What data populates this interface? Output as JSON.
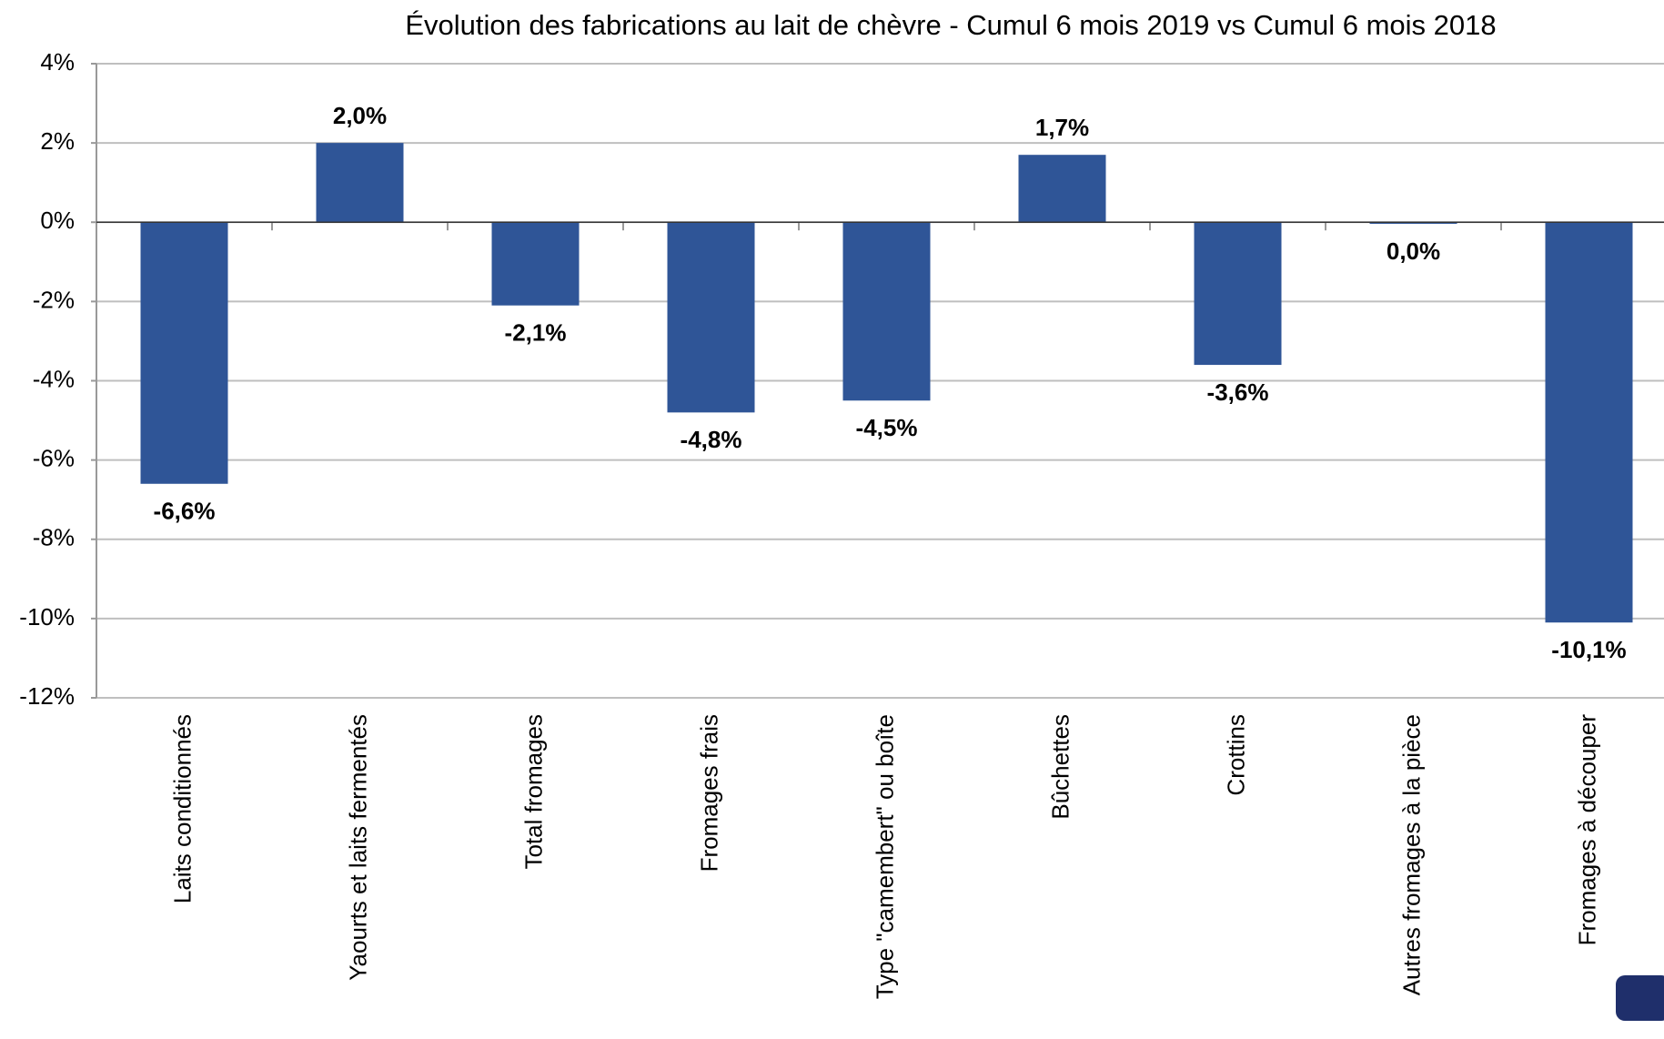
{
  "chart_data": {
    "type": "bar",
    "title": "Évolution des fabrications au lait de chèvre - Cumul 6 mois 2019 vs Cumul 6 mois 2018",
    "categories": [
      "Laits conditionnés",
      "Yaourts et laits fermentés",
      "Total fromages",
      "Fromages frais",
      "Type \"camembert\" ou boîte",
      "Bûchettes",
      "Crottins",
      "Autres fromages à la pièce",
      "Fromages à découper"
    ],
    "values": [
      -6.6,
      2.0,
      -2.1,
      -4.8,
      -4.5,
      1.7,
      -3.6,
      -0.04,
      -10.1
    ],
    "value_labels": [
      "-6,6%",
      "2,0%",
      "-2,1%",
      "-4,8%",
      "-4,5%",
      "1,7%",
      "-3,6%",
      "0,0%",
      "-10,1%"
    ],
    "color": "#2f5597",
    "ylim": [
      -12,
      4
    ],
    "yticks": [
      {
        "value": -12,
        "label": "-12%"
      },
      {
        "value": -10,
        "label": "-10%"
      },
      {
        "value": -8,
        "label": "-8%"
      },
      {
        "value": -6,
        "label": "-6%"
      },
      {
        "value": -4,
        "label": "-4%"
      },
      {
        "value": -2,
        "label": "-2%"
      },
      {
        "value": 0,
        "label": "0%"
      },
      {
        "value": 2,
        "label": "2%"
      },
      {
        "value": 4,
        "label": "4%"
      }
    ],
    "grid": true
  }
}
